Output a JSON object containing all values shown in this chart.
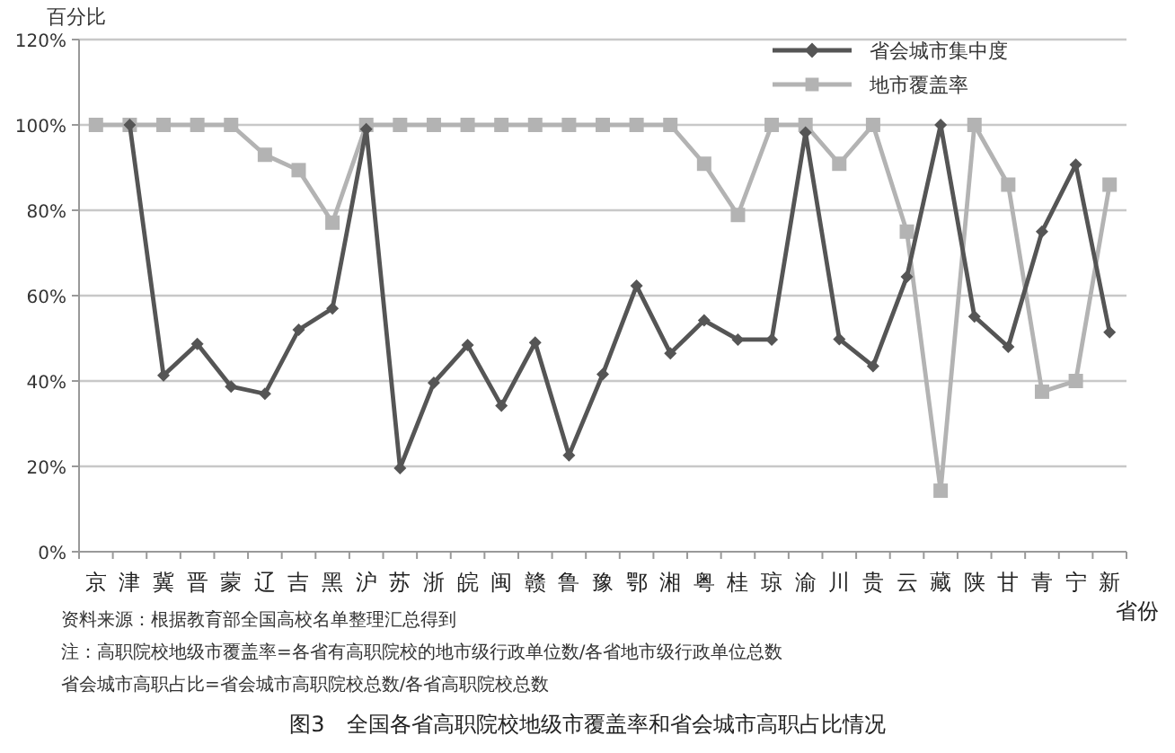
{
  "chart_data": {
    "type": "line",
    "title": "图3　全国各省高职院校地级市覆盖率和省会城市高职占比情况",
    "ylabel": "百分比",
    "xlabel": "省份",
    "categories": [
      "京",
      "津",
      "冀",
      "晋",
      "蒙",
      "辽",
      "吉",
      "黑",
      "沪",
      "苏",
      "浙",
      "皖",
      "闽",
      "赣",
      "鲁",
      "豫",
      "鄂",
      "湘",
      "粤",
      "桂",
      "琼",
      "渝",
      "川",
      "贵",
      "云",
      "藏",
      "陕",
      "甘",
      "青",
      "宁",
      "新"
    ],
    "series": [
      {
        "name": "省会城市集中度",
        "color": "#555555",
        "marker": "diamond",
        "values": [
          null,
          100,
          41.3,
          48.7,
          38.7,
          37,
          52,
          57,
          99,
          19.6,
          39.6,
          48.4,
          34.2,
          49,
          22.6,
          41.6,
          62.3,
          46.5,
          54.2,
          49.7,
          49.7,
          98.2,
          49.8,
          43.5,
          64.4,
          100,
          55.1,
          48,
          75,
          90.7,
          51.4
        ]
      },
      {
        "name": "地市覆盖率",
        "color": "#b3b3b3",
        "marker": "square",
        "values": [
          100,
          100,
          100,
          100,
          100,
          93,
          89.4,
          77.1,
          100,
          100,
          100,
          100,
          100,
          100,
          100,
          100,
          100,
          100,
          90.9,
          78.9,
          100,
          100,
          90.9,
          100,
          75,
          14.3,
          100,
          86,
          37.5,
          40,
          86
        ]
      }
    ],
    "ylim": [
      0,
      120
    ],
    "yticks": [
      {
        "value": 0,
        "label": "0%"
      },
      {
        "value": 20,
        "label": "20%"
      },
      {
        "value": 40,
        "label": "40%"
      },
      {
        "value": 60,
        "label": "60%"
      },
      {
        "value": 80,
        "label": "80%"
      },
      {
        "value": 100,
        "label": "100%"
      },
      {
        "value": 120,
        "label": "120%"
      }
    ],
    "grid": "y",
    "legend": "top right",
    "line_style": "solid",
    "annotations": [
      "资料来源：根据教育部全国高校名单整理汇总得到",
      "注：高职院校地级市覆盖率=各省有高职院校的地市级行政单位数/各省地市级行政单位总数",
      "省会城市高职占比=省会城市高职院校总数/各省高职院校总数"
    ]
  }
}
